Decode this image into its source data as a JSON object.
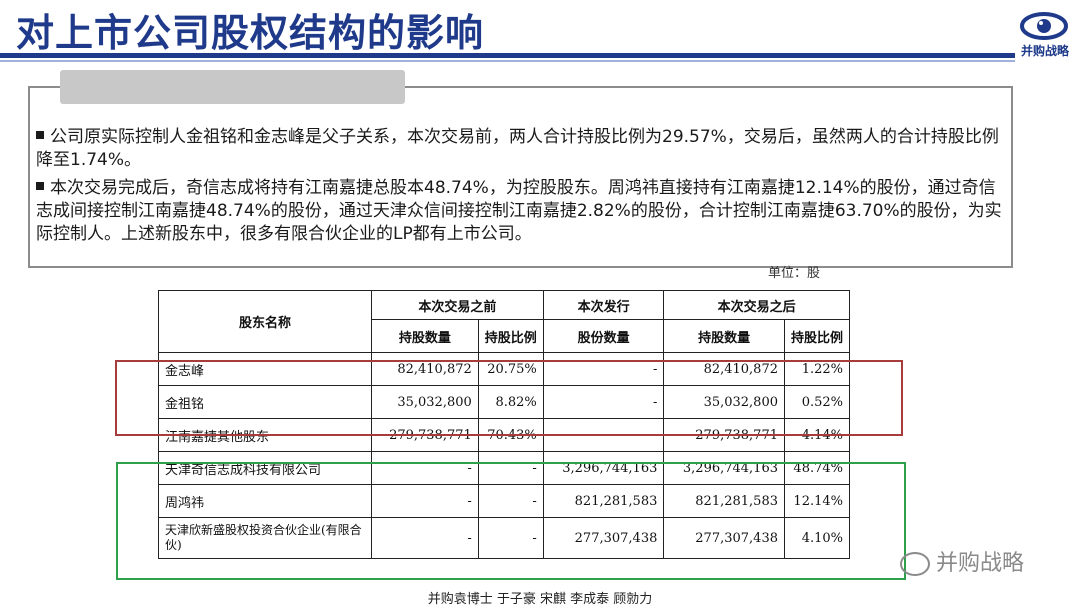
{
  "header": {
    "title": "对上市公司股权结构的影响",
    "logo_text": "并购战略"
  },
  "bullets": [
    "公司原实际控制人金祖铭和金志峰是父子关系，本次交易前，两人合计持股比例为29.57%，交易后，虽然两人的合计持股比例降至1.74%。",
    "本次交易完成后，奇信志成将持有江南嘉捷总股本48.74%，为控股股东。周鸿祎直接持有江南嘉捷12.14%的股份，通过奇信志成间接控制江南嘉捷48.74%的股份，通过天津众信间接控制江南嘉捷2.82%的股份，合计控制江南嘉捷63.70%的股份，为实际控制人。上述新股东中，很多有限合伙企业的LP都有上市公司。"
  ],
  "table": {
    "unit": "单位：股",
    "headers": {
      "name": "股东名称",
      "before": "本次交易之前",
      "issue": "本次发行",
      "after": "本次交易之后",
      "shares": "持股数量",
      "ratio": "持股比例",
      "issue_shares": "股份数量"
    },
    "rows": [
      {
        "name": "金志峰",
        "before_shares": "82,410,872",
        "before_ratio": "20.75%",
        "issue": "-",
        "after_shares": "82,410,872",
        "after_ratio": "1.22%"
      },
      {
        "name": "金祖铭",
        "before_shares": "35,032,800",
        "before_ratio": "8.82%",
        "issue": "-",
        "after_shares": "35,032,800",
        "after_ratio": "0.52%"
      },
      {
        "name": "江南嘉捷其他股东",
        "before_shares": "279,738,771",
        "before_ratio": "70.43%",
        "issue": "-",
        "after_shares": "279,738,771",
        "after_ratio": "4.14%"
      },
      {
        "name": "天津奇信志成科技有限公司",
        "before_shares": "-",
        "before_ratio": "-",
        "issue": "3,296,744,163",
        "after_shares": "3,296,744,163",
        "after_ratio": "48.74%"
      },
      {
        "name": "周鸿祎",
        "before_shares": "-",
        "before_ratio": "-",
        "issue": "821,281,583",
        "after_shares": "821,281,583",
        "after_ratio": "12.14%"
      },
      {
        "name": "天津欣新盛股权投资合伙企业(有限合伙)",
        "before_shares": "-",
        "before_ratio": "-",
        "issue": "277,307,438",
        "after_shares": "277,307,438",
        "after_ratio": "4.10%"
      }
    ]
  },
  "watermark": "并购战略",
  "footer": "并购袁博士 于子豪 宋麒 李成泰 顾勍力"
}
